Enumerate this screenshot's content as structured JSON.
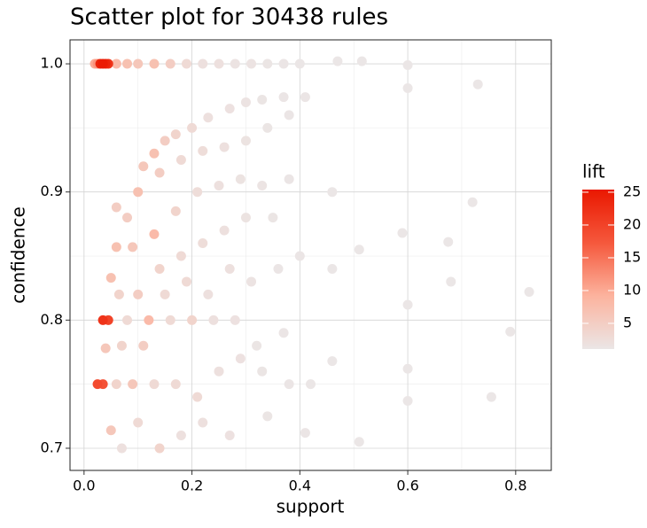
{
  "chart_data": {
    "type": "scatter",
    "title": "Scatter plot for 30438 rules",
    "xlabel": "support",
    "ylabel": "confidence",
    "legend_title": "lift",
    "xlim": [
      -0.026,
      0.866
    ],
    "ylim": [
      0.6827,
      1.0187
    ],
    "xticks": [
      {
        "value": 0,
        "label": "0.0"
      },
      0.2,
      0.4,
      0.6,
      0.8
    ],
    "yticks": [
      0.7,
      0.8,
      0.9,
      {
        "value": 1,
        "label": "1.0"
      }
    ],
    "clim": [
      1.08,
      25.4
    ],
    "cticks": [
      5,
      10,
      15,
      20,
      25
    ],
    "colorscale": [
      "#ebe6e6",
      "#fcb39e",
      "#f5583c",
      "#ea1800"
    ],
    "grid": true,
    "series": [
      {
        "name": "rules",
        "x": [
          0.02,
          0.025,
          0.03,
          0.035,
          0.04,
          0.045,
          0.06,
          0.08,
          0.1,
          0.13,
          0.16,
          0.19,
          0.22,
          0.25,
          0.28,
          0.31,
          0.34,
          0.37,
          0.4,
          0.47,
          0.515,
          0.6,
          0.73,
          0.6,
          0.41,
          0.11,
          0.13,
          0.15,
          0.17,
          0.2,
          0.23,
          0.27,
          0.3,
          0.33,
          0.37,
          0.08,
          0.1,
          0.14,
          0.18,
          0.22,
          0.26,
          0.3,
          0.34,
          0.38,
          0.09,
          0.13,
          0.17,
          0.21,
          0.25,
          0.29,
          0.33,
          0.38,
          0.1,
          0.14,
          0.18,
          0.22,
          0.26,
          0.3,
          0.35,
          0.035,
          0.045,
          0.08,
          0.12,
          0.16,
          0.2,
          0.24,
          0.28,
          0.32,
          0.37,
          0.025,
          0.035,
          0.06,
          0.09,
          0.13,
          0.17,
          0.21,
          0.25,
          0.29,
          0.33,
          0.38,
          0.05,
          0.07,
          0.1,
          0.14,
          0.18,
          0.22,
          0.27,
          0.34,
          0.41,
          0.51,
          0.05,
          0.07,
          0.11,
          0.15,
          0.19,
          0.23,
          0.27,
          0.31,
          0.36,
          0.4,
          0.46,
          0.46,
          0.46,
          0.42,
          0.51,
          0.59,
          0.6,
          0.6,
          0.6,
          0.68,
          0.675,
          0.72,
          0.755,
          0.79,
          0.825,
          0.06,
          0.06,
          0.065,
          0.04
        ],
        "y": [
          1,
          1,
          1,
          1,
          1,
          1,
          1,
          1,
          1,
          1,
          1,
          1,
          1,
          1,
          1,
          1,
          1,
          1,
          1,
          1.002,
          1.002,
          0.999,
          0.984,
          0.981,
          0.974,
          0.92,
          0.93,
          0.94,
          0.945,
          0.95,
          0.958,
          0.965,
          0.97,
          0.972,
          0.974,
          0.88,
          0.9,
          0.915,
          0.925,
          0.932,
          0.935,
          0.94,
          0.95,
          0.96,
          0.857,
          0.867,
          0.885,
          0.9,
          0.905,
          0.91,
          0.905,
          0.91,
          0.82,
          0.84,
          0.85,
          0.86,
          0.87,
          0.88,
          0.88,
          0.8,
          0.8,
          0.8,
          0.8,
          0.8,
          0.8,
          0.8,
          0.8,
          0.78,
          0.79,
          0.75,
          0.75,
          0.75,
          0.75,
          0.75,
          0.75,
          0.74,
          0.76,
          0.77,
          0.76,
          0.75,
          0.714,
          0.7,
          0.72,
          0.7,
          0.71,
          0.72,
          0.71,
          0.725,
          0.712,
          0.705,
          0.833,
          0.78,
          0.78,
          0.82,
          0.83,
          0.82,
          0.84,
          0.83,
          0.84,
          0.85,
          0.9,
          0.84,
          0.768,
          0.75,
          0.855,
          0.868,
          0.812,
          0.762,
          0.737,
          0.83,
          0.861,
          0.892,
          0.74,
          0.791,
          0.822,
          0.888,
          0.857,
          0.82,
          0.778
        ],
        "lift": [
          10,
          12,
          24,
          25,
          24,
          22,
          8,
          7,
          6,
          7,
          5,
          3,
          2,
          2,
          1.5,
          1.5,
          1.3,
          1.2,
          1.1,
          1.1,
          1.1,
          1.1,
          1.1,
          1.1,
          1.2,
          6,
          7,
          5,
          4,
          3,
          2,
          1.8,
          1.5,
          1.3,
          1.2,
          5,
          7,
          5,
          3,
          2.5,
          2,
          1.6,
          1.3,
          1.2,
          6,
          8,
          4,
          2.5,
          2,
          1.6,
          1.4,
          1.2,
          5,
          4,
          3,
          2.5,
          2,
          1.6,
          1.3,
          22,
          20,
          3,
          8,
          3,
          4,
          2,
          1.8,
          1.3,
          1.2,
          19,
          18,
          4,
          6,
          3,
          3,
          3,
          2,
          1.8,
          1.3,
          1.2,
          6,
          2,
          3,
          4,
          2,
          2,
          1.8,
          1.3,
          1.2,
          1.1,
          7,
          4,
          5,
          3,
          3,
          2,
          2,
          1.5,
          1.2,
          1.2,
          1.1,
          1.1,
          1.1,
          1.1,
          1.1,
          1.1,
          1.1,
          1.1,
          1.1,
          1.1,
          1.1,
          1.1,
          1.1,
          1.1,
          1.1,
          5,
          7,
          4,
          6
        ]
      }
    ]
  }
}
